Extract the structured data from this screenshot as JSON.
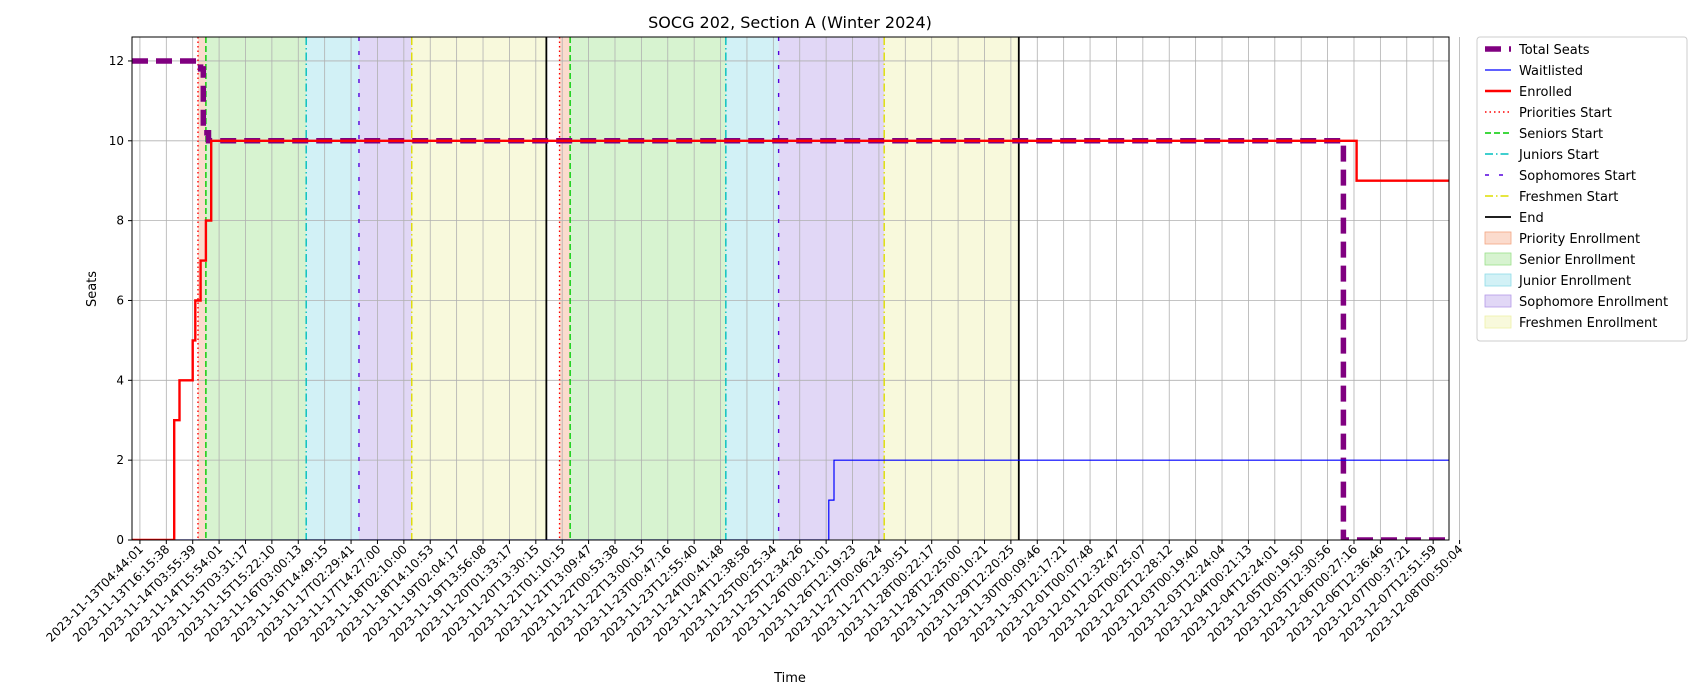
{
  "chart_data": {
    "type": "line",
    "title": "SOCG 202, Section A (Winter 2024)",
    "xlabel": "Time",
    "ylabel": "Seats",
    "ylim": [
      0,
      12.6
    ],
    "y_ticks": [
      0,
      2,
      4,
      6,
      8,
      10,
      12
    ],
    "x_tick_labels": [
      "2023-11-13T04:44:01",
      "2023-11-13T16:15:38",
      "2023-11-14T03:55:39",
      "2023-11-14T15:54:01",
      "2023-11-15T03:31:17",
      "2023-11-15T15:22:10",
      "2023-11-16T03:00:13",
      "2023-11-16T14:49:15",
      "2023-11-17T02:29:41",
      "2023-11-17T14:27:00",
      "2023-11-18T02:10:00",
      "2023-11-18T14:10:53",
      "2023-11-19T02:04:17",
      "2023-11-19T13:56:08",
      "2023-11-20T01:33:17",
      "2023-11-20T13:30:15",
      "2023-11-21T01:10:15",
      "2023-11-21T13:09:47",
      "2023-11-22T00:53:38",
      "2023-11-22T13:00:15",
      "2023-11-23T00:47:16",
      "2023-11-23T12:55:40",
      "2023-11-24T00:41:48",
      "2023-11-24T12:38:58",
      "2023-11-25T00:25:34",
      "2023-11-25T12:34:26",
      "2023-11-26T00:21:01",
      "2023-11-26T12:19:23",
      "2023-11-27T00:06:24",
      "2023-11-27T12:30:51",
      "2023-11-28T00:22:17",
      "2023-11-28T12:25:00",
      "2023-11-29T00:10:21",
      "2023-11-29T12:20:25",
      "2023-11-30T00:09:46",
      "2023-11-30T12:17:21",
      "2023-12-01T00:07:48",
      "2023-12-01T12:32:47",
      "2023-12-02T00:25:07",
      "2023-12-02T12:28:12",
      "2023-12-03T00:19:40",
      "2023-12-03T12:24:04",
      "2023-12-04T00:21:13",
      "2023-12-04T12:24:01",
      "2023-12-05T00:19:50",
      "2023-12-05T12:30:56",
      "2023-12-06T00:27:16",
      "2023-12-06T12:36:46",
      "2023-12-07T00:37:21",
      "2023-12-07T12:51:59",
      "2023-12-08T00:50:04"
    ],
    "x_range_ticks": [
      -0.3,
      49.6
    ],
    "grid": true,
    "legend_position": "outside-right-top",
    "series": [
      {
        "name": "Total Seats",
        "color": "#800080",
        "style": "dashed-thick",
        "points": [
          [
            -0.3,
            12
          ],
          [
            2.3,
            12
          ],
          [
            2.3,
            11.8
          ],
          [
            2.4,
            11.8
          ],
          [
            2.4,
            10.2
          ],
          [
            2.6,
            10.2
          ],
          [
            2.6,
            10
          ],
          [
            45.6,
            10
          ],
          [
            45.6,
            0
          ],
          [
            49.6,
            0
          ]
        ]
      },
      {
        "name": "Waitlisted",
        "color": "#0000ff",
        "style": "solid-thin",
        "points": [
          [
            -0.3,
            0
          ],
          [
            26.1,
            0
          ],
          [
            26.1,
            1
          ],
          [
            26.3,
            1
          ],
          [
            26.3,
            2
          ],
          [
            49.6,
            2
          ]
        ]
      },
      {
        "name": "Enrolled",
        "color": "#ff0000",
        "style": "solid",
        "points": [
          [
            -0.3,
            0
          ],
          [
            1.3,
            0
          ],
          [
            1.3,
            3
          ],
          [
            1.5,
            3
          ],
          [
            1.5,
            4
          ],
          [
            2.0,
            4
          ],
          [
            2.0,
            5
          ],
          [
            2.1,
            5
          ],
          [
            2.1,
            6
          ],
          [
            2.3,
            6
          ],
          [
            2.3,
            7
          ],
          [
            2.5,
            7
          ],
          [
            2.5,
            8
          ],
          [
            2.7,
            8
          ],
          [
            2.7,
            10
          ],
          [
            46.1,
            10
          ],
          [
            46.1,
            9
          ],
          [
            49.6,
            9
          ]
        ]
      }
    ],
    "vertical_lines": [
      {
        "name": "Priorities Start",
        "color": "#ff0000",
        "style": "dotted",
        "x": [
          2.2,
          15.9
        ]
      },
      {
        "name": "Seniors Start",
        "color": "#00cc00",
        "style": "dashed",
        "x": [
          2.5,
          16.3
        ]
      },
      {
        "name": "Juniors Start",
        "color": "#00bfbf",
        "style": "dashdot",
        "x": [
          6.3,
          22.2
        ]
      },
      {
        "name": "Sophomores Start",
        "color": "#5500dd",
        "style": "loosedash",
        "x": [
          8.3,
          24.2
        ]
      },
      {
        "name": "Freshmen Start",
        "color": "#dddd00",
        "style": "dashdot",
        "x": [
          10.3,
          28.2
        ]
      },
      {
        "name": "End",
        "color": "#000000",
        "style": "solid",
        "x": [
          15.4,
          33.3
        ]
      }
    ],
    "shaded_regions": [
      {
        "name": "Priority Enrollment",
        "color": "#f4a582",
        "spans": [
          [
            2.2,
            2.5
          ],
          [
            15.9,
            16.3
          ]
        ]
      },
      {
        "name": "Senior Enrollment",
        "color": "#9be08a",
        "spans": [
          [
            2.5,
            6.3
          ],
          [
            16.3,
            22.2
          ]
        ]
      },
      {
        "name": "Junior Enrollment",
        "color": "#8fdde8",
        "spans": [
          [
            6.3,
            8.3
          ],
          [
            22.2,
            24.2
          ]
        ]
      },
      {
        "name": "Sophomore Enrollment",
        "color": "#b59ae8",
        "spans": [
          [
            8.3,
            10.3
          ],
          [
            24.2,
            28.2
          ]
        ]
      },
      {
        "name": "Freshmen Enrollment",
        "color": "#eef0a8",
        "spans": [
          [
            10.3,
            15.4
          ],
          [
            28.2,
            33.3
          ]
        ]
      }
    ]
  }
}
